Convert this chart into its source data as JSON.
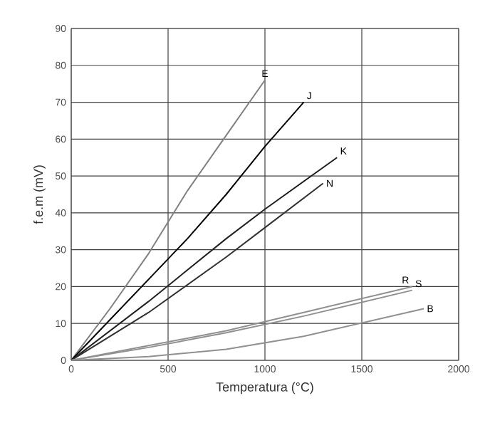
{
  "chart_data": {
    "type": "line",
    "xlabel": "Temperatura (°C)",
    "ylabel": "f.e.m (mV)",
    "xlim": [
      0,
      2000
    ],
    "xticks": [
      0,
      500,
      1000,
      1500,
      2000
    ],
    "ylim": [
      0,
      90
    ],
    "yticks": [
      0,
      10,
      20,
      30,
      40,
      50,
      60,
      70,
      80,
      90
    ],
    "grid": true,
    "legend": false,
    "marker": "none",
    "line_style": "solid",
    "series": [
      {
        "name": "E",
        "color": "#808080",
        "x": [
          0,
          200,
          400,
          600,
          800,
          1000
        ],
        "values": [
          0,
          14,
          29,
          46,
          61,
          76
        ]
      },
      {
        "name": "J",
        "color": "#000000",
        "x": [
          0,
          200,
          400,
          600,
          800,
          1000,
          1200
        ],
        "values": [
          0,
          11,
          22,
          33,
          45,
          58,
          70
        ]
      },
      {
        "name": "K",
        "color": "#202020",
        "x": [
          0,
          400,
          800,
          1000,
          1372
        ],
        "values": [
          0,
          16,
          33,
          41,
          55
        ]
      },
      {
        "name": "N",
        "color": "#303030",
        "x": [
          0,
          400,
          800,
          1000,
          1300
        ],
        "values": [
          0,
          13,
          28,
          36,
          48
        ]
      },
      {
        "name": "R",
        "color": "#909090",
        "x": [
          0,
          400,
          800,
          1200,
          1760
        ],
        "values": [
          0,
          4,
          8,
          13,
          20
        ]
      },
      {
        "name": "S",
        "color": "#909090",
        "x": [
          0,
          400,
          800,
          1200,
          1760
        ],
        "values": [
          0,
          3.5,
          7.5,
          12,
          19
        ]
      },
      {
        "name": "B",
        "color": "#909090",
        "x": [
          0,
          400,
          800,
          1200,
          1820
        ],
        "values": [
          0,
          1,
          3,
          6.5,
          14
        ]
      }
    ]
  }
}
